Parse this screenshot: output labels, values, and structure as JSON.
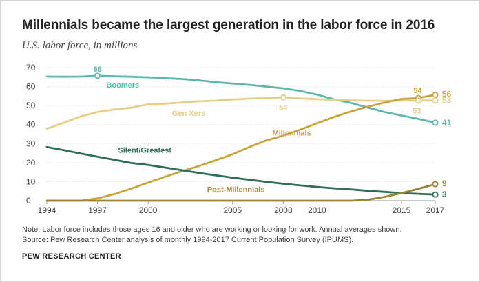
{
  "chart_data": {
    "type": "line",
    "title": "Millennials became the largest generation in the labor force in 2016",
    "subtitle": "U.S. labor force, in millions",
    "xlabel": "",
    "ylabel": "",
    "xlim": [
      1994,
      2017
    ],
    "ylim": [
      0,
      70
    ],
    "yticks": [
      0,
      10,
      20,
      30,
      40,
      50,
      60,
      70
    ],
    "xticks": [
      1994,
      1997,
      2000,
      2005,
      2008,
      2010,
      2015,
      2017
    ],
    "series": [
      {
        "name": "Boomers",
        "color": "#5fb8ad",
        "label_pos": [
          1998.5,
          59.5
        ],
        "x": [
          1994,
          1995,
          1996,
          1997,
          1998,
          1999,
          2000,
          2001,
          2002,
          2003,
          2004,
          2005,
          2006,
          2007,
          2008,
          2009,
          2010,
          2011,
          2012,
          2013,
          2014,
          2015,
          2016,
          2017
        ],
        "values": [
          65.3,
          65.2,
          65.3,
          65.7,
          65.4,
          65.2,
          64.9,
          64.4,
          64.0,
          63.3,
          62.3,
          61.6,
          60.9,
          60.0,
          59.1,
          57.7,
          55.8,
          53.3,
          51.4,
          49.0,
          46.6,
          44.8,
          43.0,
          41.0
        ],
        "point_labels": [
          {
            "x": 1997,
            "y": 65.7,
            "text": "66",
            "anchor": "middle",
            "ox": 0,
            "oy": -6
          },
          {
            "x": 2017,
            "y": 41.0,
            "text": "41",
            "anchor": "start",
            "ox": 10,
            "oy": 4
          }
        ]
      },
      {
        "name": "Gen Xers",
        "color": "#e8cf87",
        "label_pos": [
          2002.4,
          44.6
        ],
        "x": [
          1994,
          1995,
          1996,
          1997,
          1998,
          1999,
          2000,
          2001,
          2002,
          2003,
          2004,
          2005,
          2006,
          2007,
          2008,
          2009,
          2010,
          2011,
          2012,
          2013,
          2014,
          2015,
          2016,
          2017
        ],
        "values": [
          37.8,
          41.0,
          44.3,
          46.6,
          48.0,
          48.9,
          50.7,
          51.0,
          51.6,
          52.3,
          52.6,
          53.2,
          53.7,
          54.0,
          54.3,
          53.8,
          53.4,
          53.0,
          52.7,
          52.6,
          52.5,
          52.7,
          52.7,
          52.7
        ],
        "point_labels": [
          {
            "x": 2008,
            "y": 54.3,
            "text": "54",
            "anchor": "middle",
            "ox": 0,
            "oy": 18
          },
          {
            "x": 2016,
            "y": 52.7,
            "text": "53",
            "anchor": "middle",
            "ox": -2,
            "oy": 19
          },
          {
            "x": 2017,
            "y": 52.7,
            "text": "53",
            "anchor": "start",
            "ox": 10,
            "oy": 4
          }
        ]
      },
      {
        "name": "Millennials",
        "color": "#c9a43e",
        "label_pos": [
          2008.5,
          34.2
        ],
        "x": [
          1994,
          1995,
          1996,
          1997,
          1998,
          1999,
          2000,
          2001,
          2002,
          2003,
          2004,
          2005,
          2006,
          2007,
          2008,
          2009,
          2010,
          2011,
          2012,
          2013,
          2014,
          2015,
          2016,
          2017
        ],
        "values": [
          0,
          0,
          0,
          1.2,
          3.5,
          6.3,
          9.5,
          12.6,
          15.5,
          18.2,
          21.2,
          24.4,
          28.2,
          31.7,
          34.2,
          37.3,
          40.7,
          44.0,
          46.9,
          49.4,
          51.6,
          53.5,
          54.0,
          55.7
        ],
        "point_labels": [
          {
            "x": 2016,
            "y": 54.0,
            "text": "54",
            "anchor": "middle",
            "ox": -1,
            "oy": -7
          },
          {
            "x": 2017,
            "y": 55.7,
            "text": "56",
            "anchor": "start",
            "ox": 10,
            "oy": 3
          }
        ]
      },
      {
        "name": "Silent/Greatest",
        "color": "#2e6e55",
        "label_pos": [
          1999.8,
          25.2
        ],
        "x": [
          1994,
          1995,
          1996,
          1997,
          1998,
          1999,
          2000,
          2001,
          2002,
          2003,
          2004,
          2005,
          2006,
          2007,
          2008,
          2009,
          2010,
          2011,
          2012,
          2013,
          2014,
          2015,
          2016,
          2017
        ],
        "values": [
          28.2,
          26.6,
          24.8,
          23.1,
          21.5,
          19.8,
          18.8,
          17.4,
          16.0,
          14.6,
          13.3,
          12.1,
          11.0,
          9.9,
          8.9,
          8.0,
          7.2,
          6.5,
          5.9,
          5.2,
          4.6,
          4.0,
          3.6,
          3.2
        ],
        "point_labels": [
          {
            "x": 2017,
            "y": 3.2,
            "text": "3",
            "anchor": "start",
            "ox": 10,
            "oy": 4
          }
        ]
      },
      {
        "name": "Post-Millennials",
        "color": "#9c8235",
        "label_pos": [
          2005.2,
          4.5
        ],
        "x": [
          1994,
          1995,
          1996,
          1997,
          1998,
          1999,
          2000,
          2001,
          2002,
          2003,
          2004,
          2005,
          2006,
          2007,
          2008,
          2009,
          2010,
          2011,
          2012,
          2013,
          2014,
          2015,
          2016,
          2017
        ],
        "values": [
          0,
          0,
          0,
          0,
          0,
          0,
          0,
          0,
          0,
          0,
          0,
          0,
          0,
          0,
          0,
          0,
          0,
          0,
          0,
          0.5,
          2.0,
          4.0,
          6.2,
          8.7
        ],
        "point_labels": [
          {
            "x": 2017,
            "y": 8.7,
            "text": "9",
            "anchor": "start",
            "ox": 10,
            "oy": 3
          }
        ]
      }
    ],
    "markers": [
      {
        "series": "Boomers",
        "x": 1997,
        "y": 65.7
      },
      {
        "series": "Gen Xers",
        "x": 2008,
        "y": 54.3
      },
      {
        "series": "Millennials",
        "x": 2016,
        "y": 54.0
      },
      {
        "series": "Gen Xers",
        "x": 2016,
        "y": 52.7
      },
      {
        "series": "Millennials",
        "x": 2017,
        "y": 55.7
      },
      {
        "series": "Gen Xers",
        "x": 2017,
        "y": 52.7
      },
      {
        "series": "Boomers",
        "x": 2017,
        "y": 41.0
      },
      {
        "series": "Post-Millennials",
        "x": 2017,
        "y": 8.7
      },
      {
        "series": "Silent/Greatest",
        "x": 2017,
        "y": 3.2
      }
    ],
    "grid": true
  },
  "notes": {
    "line1": "Note: Labor force includes those ages 16 and older who are working or looking for work. Annual averages shown.",
    "line2": "Source: Pew Research Center analysis of monthly 1994-2017 Current Population Survey (IPUMS)."
  },
  "organization": "PEW RESEARCH CENTER"
}
